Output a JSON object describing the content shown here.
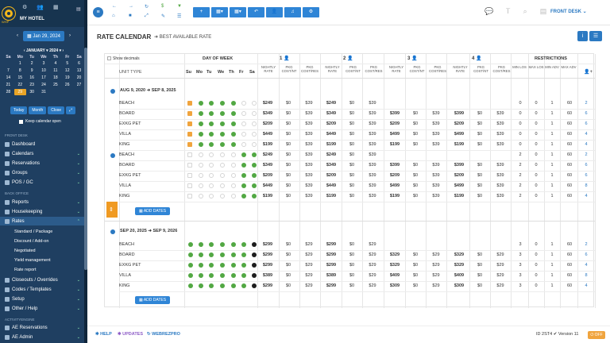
{
  "sidebar": {
    "logo_text": "WHP",
    "hotel": "MY HOTEL",
    "date": "Jan 29, 2024",
    "cal_month": "JANUARY",
    "cal_year": "2024",
    "weekdays": [
      "Sa",
      "Mo",
      "Tu",
      "We",
      "Th",
      "Fr",
      "Sa"
    ],
    "days": [
      "",
      "1",
      "2",
      "3",
      "4",
      "5",
      "6",
      "7",
      "8",
      "9",
      "10",
      "11",
      "12",
      "13",
      "14",
      "15",
      "16",
      "17",
      "18",
      "19",
      "20",
      "21",
      "22",
      "23",
      "24",
      "25",
      "26",
      "27",
      "28",
      "29",
      "30",
      "31"
    ],
    "today": "29",
    "btn_today": "Today",
    "btn_month": "Month",
    "btn_close": "Close",
    "keep_open": "Keep calendar open",
    "sec_frontdesk": "FRONT DESK",
    "sec_backoffice": "BACK OFFICE",
    "sec_activities": "ACTIVITYENGINE",
    "nav": {
      "dashboard": "Dashboard",
      "calendars": "Calendars",
      "reservations": "Reservations",
      "groups": "Groups",
      "pos": "POS / GC",
      "reports": "Reports",
      "housekeeping": "Housekeeping",
      "rates": "Rates",
      "standard": "Standard / Package",
      "discount": "Discount / Add-on",
      "negotiated": "Negotiated",
      "yield": "Yield management",
      "ratereport": "Rate report",
      "closeouts": "Closeouts / Overrides",
      "codes": "Codes / Templates",
      "setup": "Setup",
      "other": "Other / Help",
      "ae_res": "AE Reservations",
      "ae_admin": "AE Admin"
    }
  },
  "topbar": {
    "front_desk": "FRONT DESK"
  },
  "page": {
    "title": "RATE CALENDAR",
    "subtitle": "BEST AVAILABLE RATE",
    "show_decimals": "Show decimals"
  },
  "grid": {
    "hdr": {
      "dow": "DAY OF WEEK",
      "unit_type": "UNIT TYPE",
      "occ": [
        "1",
        "2",
        "3",
        "4"
      ],
      "nightly": "NIGHTLY RATE",
      "pkg_cost": "PKG COST/NT",
      "pkg_stay": "PKG COST/RES",
      "restrictions": "RESTRICTIONS",
      "minlos": "MIN LOS",
      "maxlos": "MAX LOS",
      "minadv": "MIN ADV",
      "maxadv": "MAX ADV"
    },
    "days": [
      "Su",
      "Mo",
      "Tu",
      "We",
      "Th",
      "Fr",
      "Sa"
    ],
    "p1_from": "AUG 9, 2020",
    "p1_to": "SEP 8, 2025",
    "p2_from": "SEP 20, 2025",
    "p2_to": "SEP 9, 2026",
    "add_dates": "ADD DATES",
    "rows": [
      [
        "BEACH",
        "$249",
        "$0",
        "$39",
        "$249",
        "$0",
        "$39",
        "",
        "",
        "",
        "",
        "",
        "",
        "0",
        "0",
        "1",
        "60",
        "2"
      ],
      [
        "BOARD",
        "$349",
        "$0",
        "$39",
        "$349",
        "$0",
        "$39",
        "$399",
        "$0",
        "$39",
        "$399",
        "$0",
        "$39",
        "0",
        "0",
        "1",
        "60",
        "6"
      ],
      [
        "EXKG PET",
        "$209",
        "$0",
        "$39",
        "$209",
        "$0",
        "$39",
        "$209",
        "$0",
        "$39",
        "$209",
        "$0",
        "$39",
        "0",
        "0",
        "1",
        "60",
        "6"
      ],
      [
        "VILLA",
        "$449",
        "$0",
        "$39",
        "$449",
        "$0",
        "$39",
        "$499",
        "$0",
        "$39",
        "$499",
        "$0",
        "$39",
        "0",
        "0",
        "1",
        "60",
        "4"
      ],
      [
        "KING",
        "$199",
        "$0",
        "$39",
        "$199",
        "$0",
        "$39",
        "$199",
        "$0",
        "$39",
        "$199",
        "$0",
        "$39",
        "0",
        "0",
        "1",
        "60",
        "4"
      ],
      [
        "BEACH",
        "$249",
        "$0",
        "$39",
        "$249",
        "$0",
        "$39",
        "",
        "",
        "",
        "",
        "",
        "",
        "2",
        "0",
        "1",
        "60",
        "2"
      ],
      [
        "BOARD",
        "$349",
        "$0",
        "$39",
        "$349",
        "$0",
        "$39",
        "$399",
        "$0",
        "$39",
        "$399",
        "$0",
        "$39",
        "2",
        "0",
        "1",
        "60",
        "6"
      ],
      [
        "EXKG PET",
        "$209",
        "$0",
        "$39",
        "$209",
        "$0",
        "$39",
        "$209",
        "$0",
        "$39",
        "$209",
        "$0",
        "$39",
        "2",
        "0",
        "1",
        "60",
        "6"
      ],
      [
        "VILLA",
        "$449",
        "$0",
        "$39",
        "$449",
        "$0",
        "$39",
        "$499",
        "$0",
        "$39",
        "$499",
        "$0",
        "$39",
        "2",
        "0",
        "1",
        "60",
        "8"
      ],
      [
        "KING",
        "$199",
        "$0",
        "$39",
        "$199",
        "$0",
        "$39",
        "$199",
        "$0",
        "$39",
        "$199",
        "$0",
        "$39",
        "2",
        "0",
        "1",
        "60",
        "4"
      ],
      [
        "BEACH",
        "$299",
        "$0",
        "$29",
        "$299",
        "$0",
        "$29",
        "",
        "",
        "",
        "",
        "",
        "",
        "3",
        "0",
        "1",
        "60",
        "2"
      ],
      [
        "BOARD",
        "$299",
        "$0",
        "$29",
        "$299",
        "$0",
        "$29",
        "$329",
        "$0",
        "$29",
        "$329",
        "$0",
        "$29",
        "3",
        "0",
        "1",
        "60",
        "6"
      ],
      [
        "EXKG PET",
        "$299",
        "$0",
        "$29",
        "$299",
        "$0",
        "$29",
        "$329",
        "$0",
        "$29",
        "$329",
        "$0",
        "$29",
        "3",
        "0",
        "1",
        "60",
        "4"
      ],
      [
        "VILLA",
        "$389",
        "$0",
        "$29",
        "$389",
        "$0",
        "$29",
        "$409",
        "$0",
        "$29",
        "$409",
        "$0",
        "$29",
        "3",
        "0",
        "1",
        "60",
        "8"
      ],
      [
        "KING",
        "$299",
        "$0",
        "$29",
        "$299",
        "$0",
        "$29",
        "$309",
        "$0",
        "$29",
        "$309",
        "$0",
        "$29",
        "3",
        "0",
        "1",
        "60",
        "4"
      ]
    ]
  },
  "footer": {
    "help": "HELP",
    "updates": "UPDATES",
    "webrez": "WEBREZPRO",
    "id": "ID 2ST4",
    "version": "Version 11",
    "off": "OFF"
  }
}
